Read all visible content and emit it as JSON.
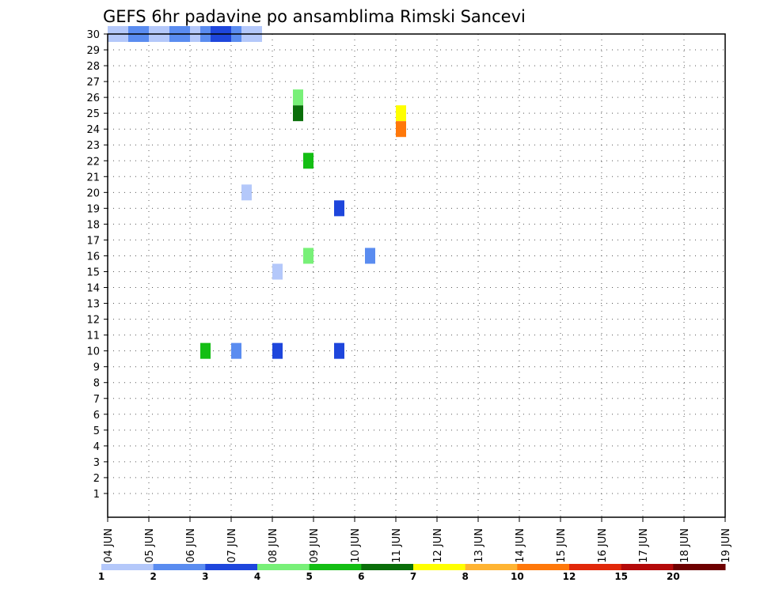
{
  "chart_data": {
    "type": "heatmap",
    "title": "GEFS 6hr padavine po ansamblima Rimski Sancevi",
    "xlabel": "",
    "ylabel": "",
    "x_tick_labels": [
      "04 JUN",
      "05 JUN",
      "06 JUN",
      "07 JUN",
      "08 JUN",
      "09 JUN",
      "10 JUN",
      "11 JUN",
      "12 JUN",
      "13 JUN",
      "14 JUN",
      "15 JUN",
      "16 JUN",
      "17 JUN",
      "18 JUN",
      "19 JUN"
    ],
    "y_tick_labels": [
      "1",
      "2",
      "3",
      "4",
      "5",
      "6",
      "7",
      "8",
      "9",
      "10",
      "11",
      "12",
      "13",
      "14",
      "15",
      "16",
      "17",
      "18",
      "19",
      "20",
      "21",
      "22",
      "23",
      "24",
      "25",
      "26",
      "27",
      "28",
      "29",
      "30"
    ],
    "grid": true,
    "colorbar": {
      "position": "bottom",
      "labels": [
        "1",
        "2",
        "3",
        "4",
        "5",
        "6",
        "7",
        "8",
        "10",
        "12",
        "15",
        "20"
      ],
      "colors": [
        "#b4c8fa",
        "#5a8cf0",
        "#1e46dc",
        "#78f078",
        "#14be14",
        "#0a6e0a",
        "#ffff00",
        "#ffb432",
        "#ff780a",
        "#e1280a",
        "#b40a0a",
        "#6e0000"
      ]
    },
    "cells": [
      [
        0,
        0,
        30,
        1
      ],
      [
        0,
        1,
        30,
        1
      ],
      [
        0,
        2,
        30,
        2
      ],
      [
        0,
        3,
        30,
        2
      ],
      [
        0,
        4,
        30,
        1
      ],
      [
        0,
        5,
        30,
        1
      ],
      [
        0,
        6,
        30,
        2
      ],
      [
        0,
        7,
        30,
        2
      ],
      [
        0,
        8,
        30,
        1
      ],
      [
        0,
        9,
        30,
        2
      ],
      [
        0,
        10,
        30,
        3
      ],
      [
        0,
        11,
        30,
        3
      ],
      [
        0,
        12,
        30,
        2
      ],
      [
        0,
        13,
        30,
        1
      ],
      [
        0,
        14,
        30,
        1
      ],
      [
        2,
        1,
        10,
        5
      ],
      [
        2,
        4,
        10,
        2
      ],
      [
        2,
        8,
        10,
        3
      ],
      [
        2,
        14,
        10,
        3
      ],
      [
        3,
        7,
        22,
        5
      ],
      [
        3,
        7,
        16,
        4
      ],
      [
        3,
        1,
        20,
        1
      ],
      [
        3,
        13,
        16,
        2
      ],
      [
        3,
        10,
        19,
        3
      ],
      [
        4,
        2,
        25,
        6
      ],
      [
        4,
        12,
        25,
        7
      ],
      [
        4,
        12,
        24,
        9
      ],
      [
        4,
        2,
        26,
        4
      ],
      [
        4,
        0,
        15,
        1
      ]
    ]
  }
}
